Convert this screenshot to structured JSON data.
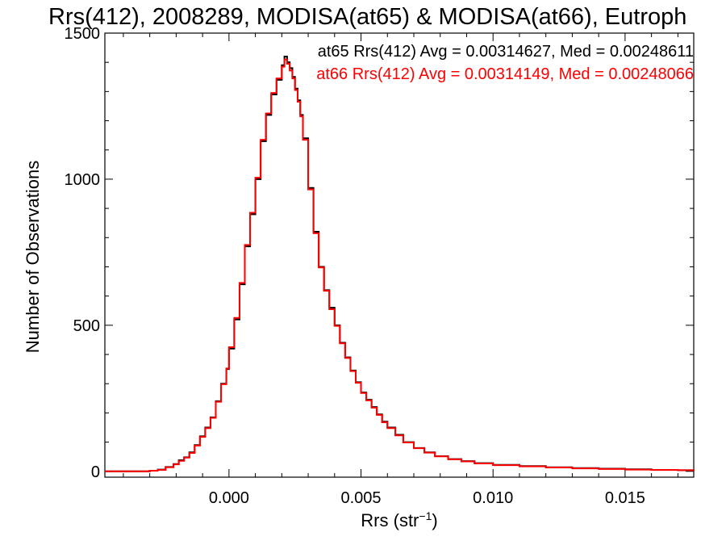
{
  "chart_data": {
    "type": "line",
    "title": "Rrs(412), 2008289, MODISA(at65) & MODISA(at66), Eutroph",
    "xlabel": "Rrs (str",
    "xlabel_sup": "−1",
    "xlabel_close": ")",
    "ylabel": "Number of Observations",
    "xlim": [
      -0.0047,
      0.0176
    ],
    "ylim": [
      -20,
      1500
    ],
    "x_ticks": [
      0.0,
      0.005,
      0.01,
      0.015
    ],
    "x_tick_labels": [
      "0.000",
      "0.005",
      "0.010",
      "0.015"
    ],
    "y_ticks": [
      0,
      500,
      1000,
      1500
    ],
    "y_tick_labels": [
      "0",
      "500",
      "1000",
      "1500"
    ],
    "grid": false,
    "legend_position": "top-right",
    "series": [
      {
        "name": "at65 Rrs(412) Avg = 0.00314627, Med = 0.00248611",
        "color": "#000000",
        "x": [
          -0.0047,
          -0.004,
          -0.0034,
          -0.003,
          -0.0027,
          -0.0024,
          -0.0021,
          -0.0019,
          -0.0017,
          -0.0015,
          -0.0013,
          -0.0011,
          -0.0009,
          -0.0007,
          -0.0005,
          -0.0003,
          -0.0001,
          0.0,
          0.0002,
          0.0004,
          0.0006,
          0.0008,
          0.001,
          0.0012,
          0.0014,
          0.0016,
          0.0018,
          0.002,
          0.0021,
          0.0022,
          0.0023,
          0.0024,
          0.0025,
          0.0026,
          0.0027,
          0.0028,
          0.003,
          0.0032,
          0.0034,
          0.0036,
          0.0038,
          0.004,
          0.0042,
          0.0044,
          0.0046,
          0.0048,
          0.005,
          0.0052,
          0.0054,
          0.0056,
          0.0058,
          0.006,
          0.0063,
          0.0066,
          0.007,
          0.0074,
          0.0078,
          0.0083,
          0.0088,
          0.0093,
          0.01,
          0.011,
          0.012,
          0.013,
          0.014,
          0.015,
          0.016,
          0.017,
          0.0176
        ],
        "y": [
          0,
          0,
          0,
          2,
          6,
          15,
          25,
          38,
          48,
          65,
          90,
          120,
          150,
          185,
          240,
          300,
          350,
          420,
          520,
          640,
          770,
          880,
          1000,
          1130,
          1220,
          1290,
          1340,
          1390,
          1420,
          1400,
          1380,
          1350,
          1310,
          1270,
          1220,
          1140,
          970,
          820,
          700,
          620,
          560,
          500,
          440,
          390,
          345,
          305,
          270,
          245,
          220,
          195,
          170,
          150,
          125,
          100,
          80,
          65,
          52,
          42,
          35,
          28,
          22,
          18,
          14,
          11,
          9,
          7,
          5,
          4,
          3
        ]
      },
      {
        "name": "at66 Rrs(412) Avg = 0.00314149, Med = 0.00248066",
        "color": "#ff0000",
        "x": [
          -0.0047,
          -0.004,
          -0.0034,
          -0.003,
          -0.0027,
          -0.0024,
          -0.0021,
          -0.0019,
          -0.0017,
          -0.0015,
          -0.0013,
          -0.0011,
          -0.0009,
          -0.0007,
          -0.0005,
          -0.0003,
          -0.0001,
          0.0,
          0.0002,
          0.0004,
          0.0006,
          0.0008,
          0.001,
          0.0012,
          0.0014,
          0.0016,
          0.0018,
          0.002,
          0.0021,
          0.0022,
          0.0023,
          0.0024,
          0.0025,
          0.0026,
          0.0027,
          0.0028,
          0.003,
          0.0032,
          0.0034,
          0.0036,
          0.0038,
          0.004,
          0.0042,
          0.0044,
          0.0046,
          0.0048,
          0.005,
          0.0052,
          0.0054,
          0.0056,
          0.0058,
          0.006,
          0.0063,
          0.0066,
          0.007,
          0.0074,
          0.0078,
          0.0083,
          0.0088,
          0.0093,
          0.01,
          0.011,
          0.012,
          0.013,
          0.014,
          0.015,
          0.016,
          0.017,
          0.0176
        ],
        "y": [
          0,
          0,
          0,
          2,
          5,
          14,
          24,
          36,
          47,
          63,
          88,
          118,
          148,
          183,
          238,
          298,
          352,
          425,
          525,
          645,
          775,
          885,
          1005,
          1135,
          1225,
          1295,
          1345,
          1385,
          1410,
          1395,
          1372,
          1345,
          1305,
          1265,
          1215,
          1135,
          965,
          815,
          698,
          618,
          555,
          498,
          438,
          388,
          343,
          303,
          268,
          243,
          218,
          193,
          168,
          148,
          123,
          99,
          79,
          64,
          51,
          41,
          34,
          27,
          21,
          17,
          13,
          10,
          8,
          6,
          5,
          4,
          3
        ]
      }
    ]
  }
}
